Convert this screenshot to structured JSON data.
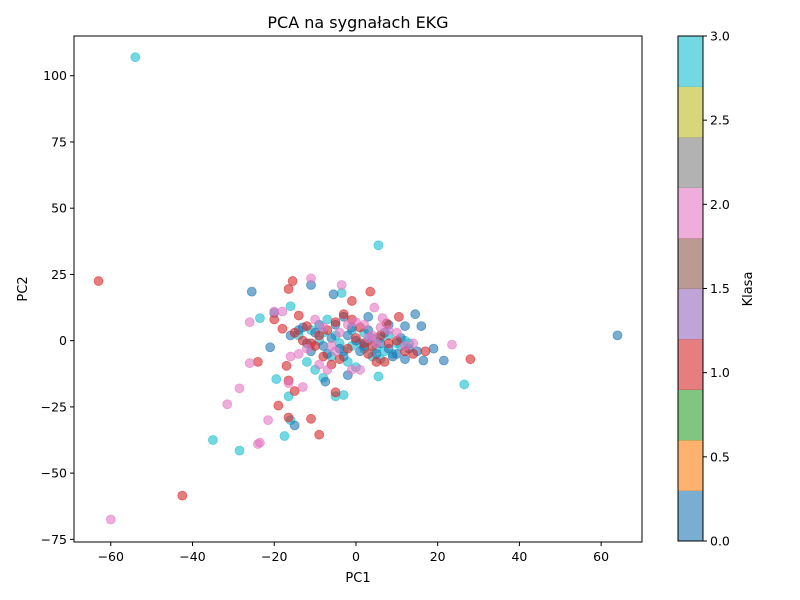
{
  "chart_data": {
    "type": "scatter",
    "title": "PCA na sygnałach EKG",
    "xlabel": "PC1",
    "ylabel": "PC2",
    "xlim": [
      -69,
      70
    ],
    "ylim": [
      -76,
      115
    ],
    "xticks": [
      -60,
      -40,
      -20,
      0,
      20,
      40,
      60
    ],
    "yticks": [
      -75,
      -50,
      -25,
      0,
      25,
      50,
      75,
      100
    ],
    "grid": false,
    "colorbar": {
      "label": "Klasa",
      "range": [
        0.0,
        3.0
      ],
      "ticks": [
        "0.0",
        "0.5",
        "1.0",
        "1.5",
        "2.0",
        "2.5",
        "3.0"
      ],
      "colors": [
        "#1f77b4",
        "#ff7f0e",
        "#2ca02c",
        "#d62728",
        "#9467bd",
        "#8c564b",
        "#e377c2",
        "#7f7f7f",
        "#bcbd22",
        "#17becf"
      ]
    },
    "class_colors": {
      "0": "#1f77b4",
      "1": "#d62728",
      "2": "#e377c2",
      "3": "#17becf"
    },
    "point_alpha": 0.6,
    "series": [
      {
        "class": 3,
        "points": [
          [
            -54,
            107
          ],
          [
            5.5,
            36
          ],
          [
            -35,
            -37.5
          ],
          [
            -28.5,
            -41.5
          ],
          [
            -17.5,
            -36
          ],
          [
            -16.5,
            -21
          ],
          [
            -19.5,
            -14.5
          ],
          [
            -23.5,
            8.5
          ],
          [
            -16,
            13
          ],
          [
            -3,
            -20.5
          ],
          [
            -5,
            -21
          ],
          [
            -3.5,
            18
          ],
          [
            5.5,
            -13.5
          ],
          [
            26.5,
            -16.5
          ],
          [
            -16,
            -30
          ],
          [
            -12,
            -8
          ],
          [
            -10,
            -11
          ],
          [
            -8,
            -14
          ],
          [
            -6,
            -6
          ],
          [
            -3,
            -4
          ],
          [
            -1,
            -2
          ],
          [
            1,
            -1
          ],
          [
            3,
            0
          ],
          [
            5,
            -3
          ],
          [
            7,
            -4
          ],
          [
            9,
            -5
          ],
          [
            11,
            -2
          ],
          [
            13,
            -1
          ],
          [
            -14,
            2
          ],
          [
            -9,
            0
          ],
          [
            -5,
            2
          ],
          [
            -1,
            4
          ],
          [
            2,
            3
          ],
          [
            4,
            -6
          ],
          [
            6,
            1
          ],
          [
            8,
            2
          ],
          [
            10,
            -1
          ],
          [
            12,
            0
          ],
          [
            -7,
            8
          ],
          [
            -2,
            -8
          ],
          [
            0,
            -10
          ],
          [
            -11,
            4
          ],
          [
            -4,
            -1
          ],
          [
            2,
            -3
          ],
          [
            6,
            -7
          ],
          [
            -8,
            3
          ]
        ]
      },
      {
        "class": 0,
        "points": [
          [
            64,
            2
          ],
          [
            -25.5,
            18.5
          ],
          [
            -11,
            21
          ],
          [
            -5.5,
            17.5
          ],
          [
            -20,
            10.5
          ],
          [
            -21,
            -2.5
          ],
          [
            -15,
            -32
          ],
          [
            -7.5,
            -15.5
          ],
          [
            -2,
            -13
          ],
          [
            12,
            5.5
          ],
          [
            14.5,
            10
          ],
          [
            16,
            5.5
          ],
          [
            21.5,
            -7.5
          ],
          [
            19,
            -3
          ],
          [
            16.5,
            -7.5
          ],
          [
            12,
            -7
          ],
          [
            10,
            -5
          ],
          [
            8,
            -3
          ],
          [
            6,
            -1
          ],
          [
            4,
            1
          ],
          [
            2,
            -2
          ],
          [
            0,
            0
          ],
          [
            -2,
            2
          ],
          [
            -4,
            -3
          ],
          [
            -6,
            1
          ],
          [
            -8,
            -2
          ],
          [
            -10,
            3
          ],
          [
            -12,
            -1
          ],
          [
            -14,
            4
          ],
          [
            -16,
            2
          ],
          [
            13,
            -3
          ],
          [
            15,
            -4
          ],
          [
            11,
            1
          ],
          [
            9,
            -6
          ],
          [
            7,
            3
          ],
          [
            5,
            -5
          ],
          [
            3,
            4
          ],
          [
            1,
            -4
          ],
          [
            -1,
            5
          ],
          [
            -3,
            -6
          ],
          [
            -5,
            6
          ],
          [
            -7,
            -5
          ],
          [
            -9,
            6
          ],
          [
            -11,
            -4
          ],
          [
            -13,
            5
          ],
          [
            -3,
            9
          ],
          [
            3,
            9
          ],
          [
            8,
            6
          ]
        ]
      },
      {
        "class": 1,
        "points": [
          [
            -63,
            22.5
          ],
          [
            -42.5,
            -58.5
          ],
          [
            -15.5,
            22.5
          ],
          [
            -16.5,
            19.5
          ],
          [
            -1,
            15
          ],
          [
            3.5,
            18.5
          ],
          [
            -11,
            -29.5
          ],
          [
            -9,
            -35.5
          ],
          [
            -16.5,
            -29
          ],
          [
            -19,
            -24.5
          ],
          [
            -15,
            -19
          ],
          [
            -16.5,
            -15
          ],
          [
            -17,
            -9.5
          ],
          [
            -24,
            -8
          ],
          [
            -5,
            -19.5
          ],
          [
            28,
            -7
          ],
          [
            17,
            -4
          ],
          [
            10.5,
            9
          ],
          [
            7.5,
            6.5
          ],
          [
            -14,
            9.5
          ],
          [
            -18,
            4.5
          ],
          [
            -20,
            8
          ],
          [
            -12,
            5.5
          ],
          [
            -10,
            -2
          ],
          [
            -8,
            -6
          ],
          [
            -6,
            -9
          ],
          [
            -4,
            -7
          ],
          [
            -2,
            -3
          ],
          [
            0,
            1
          ],
          [
            2,
            -1
          ],
          [
            4,
            -2
          ],
          [
            6,
            2
          ],
          [
            8,
            -1
          ],
          [
            10,
            0
          ],
          [
            12,
            -4
          ],
          [
            14,
            -5
          ],
          [
            -9,
            2
          ],
          [
            -7,
            4
          ],
          [
            -5,
            7
          ],
          [
            -3,
            10
          ],
          [
            -1,
            8
          ],
          [
            1,
            5
          ],
          [
            3,
            -5
          ],
          [
            5,
            -8
          ],
          [
            7,
            -8
          ],
          [
            -13,
            0
          ],
          [
            -11,
            -1
          ],
          [
            -15,
            3
          ]
        ]
      },
      {
        "class": 2,
        "points": [
          [
            -60,
            -67.5
          ],
          [
            -23.5,
            -38.5
          ],
          [
            -24,
            -39
          ],
          [
            -31.5,
            -24
          ],
          [
            -28.5,
            -18
          ],
          [
            -21.5,
            -30
          ],
          [
            -13,
            -17.5
          ],
          [
            -16.5,
            -16
          ],
          [
            -26,
            -8.5
          ],
          [
            -26,
            7
          ],
          [
            -20,
            11
          ],
          [
            -11,
            23.5
          ],
          [
            -3.5,
            21
          ],
          [
            4.5,
            12.5
          ],
          [
            6.5,
            8.5
          ],
          [
            23.5,
            -1.5
          ],
          [
            -9,
            -9
          ],
          [
            -7,
            -11
          ],
          [
            -1,
            -11
          ],
          [
            1,
            -11
          ],
          [
            -18,
            11
          ],
          [
            -16,
            -6
          ],
          [
            -14,
            -5
          ],
          [
            -12,
            -3
          ],
          [
            -8,
            5
          ],
          [
            -6,
            -2
          ],
          [
            -4,
            3
          ],
          [
            -2,
            6
          ],
          [
            0,
            7
          ],
          [
            2,
            6
          ],
          [
            4,
            2
          ],
          [
            6,
            5
          ],
          [
            8,
            4
          ],
          [
            10,
            3
          ],
          [
            12,
            -2
          ],
          [
            14,
            -1
          ],
          [
            -10,
            8
          ],
          [
            -5,
            -4
          ],
          [
            3,
            1
          ],
          [
            5,
            -1
          ]
        ]
      }
    ]
  }
}
